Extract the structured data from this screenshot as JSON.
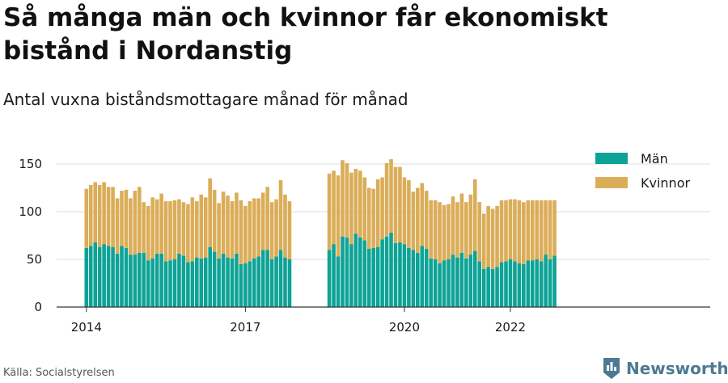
{
  "title": "Så många män och kvinnor får ekonomiskt bistånd i Nordanstig",
  "subtitle": "Antal vuxna biståndsmottagare månad för månad",
  "source": "Källa: Socialstyrelsen",
  "brand": {
    "name": "Newsworthy",
    "icon": "newsworthy-logo-icon",
    "color": "#4d7a91"
  },
  "colors": {
    "men": "#0ea396",
    "women": "#dbad59",
    "grid": "#dddddd",
    "axis": "#333333"
  },
  "chart_data": {
    "type": "bar",
    "stacked": true,
    "x_start": "2014-01",
    "x_ticks": [
      "2014",
      "2017",
      "2020",
      "2022"
    ],
    "y_ticks": [
      "0",
      "50",
      "100",
      "150"
    ],
    "ylim": [
      0,
      160
    ],
    "legend": {
      "position": "top-right",
      "entries": [
        "Män",
        "Kvinnor"
      ]
    },
    "series": [
      {
        "name": "Män",
        "values": [
          62,
          64,
          68,
          63,
          66,
          64,
          63,
          56,
          64,
          62,
          55,
          55,
          57,
          57,
          49,
          51,
          56,
          56,
          48,
          49,
          50,
          56,
          54,
          47,
          48,
          52,
          51,
          52,
          63,
          58,
          51,
          56,
          52,
          51,
          56,
          45,
          46,
          48,
          51,
          53,
          60,
          60,
          50,
          53,
          60,
          52,
          50,
          null,
          null,
          null,
          null,
          null,
          null,
          null,
          null,
          60,
          66,
          53,
          74,
          73,
          66,
          77,
          73,
          70,
          61,
          62,
          63,
          71,
          74,
          78,
          67,
          68,
          66,
          62,
          60,
          57,
          64,
          61,
          51,
          50,
          46,
          49,
          50,
          55,
          52,
          57,
          51,
          55,
          59,
          48,
          40,
          42,
          40,
          42,
          47,
          48,
          50,
          48,
          46,
          45,
          49,
          49,
          50,
          48,
          55,
          50,
          54
        ]
      },
      {
        "name": "Kvinnor",
        "values": [
          62,
          64,
          63,
          65,
          65,
          62,
          63,
          58,
          58,
          61,
          59,
          67,
          69,
          53,
          57,
          64,
          57,
          63,
          63,
          62,
          62,
          57,
          56,
          61,
          67,
          59,
          67,
          63,
          72,
          65,
          58,
          65,
          65,
          60,
          64,
          67,
          60,
          63,
          63,
          61,
          60,
          66,
          60,
          60,
          73,
          66,
          61,
          null,
          null,
          null,
          null,
          null,
          null,
          null,
          null,
          80,
          77,
          85,
          80,
          78,
          75,
          68,
          70,
          66,
          64,
          62,
          71,
          65,
          77,
          77,
          80,
          79,
          70,
          71,
          61,
          68,
          66,
          61,
          61,
          62,
          64,
          58,
          58,
          61,
          58,
          62,
          59,
          63,
          75,
          62,
          58,
          64,
          63,
          64,
          65,
          64,
          63,
          65,
          66,
          65,
          63,
          63,
          62,
          64,
          57,
          62,
          58
        ]
      }
    ]
  }
}
